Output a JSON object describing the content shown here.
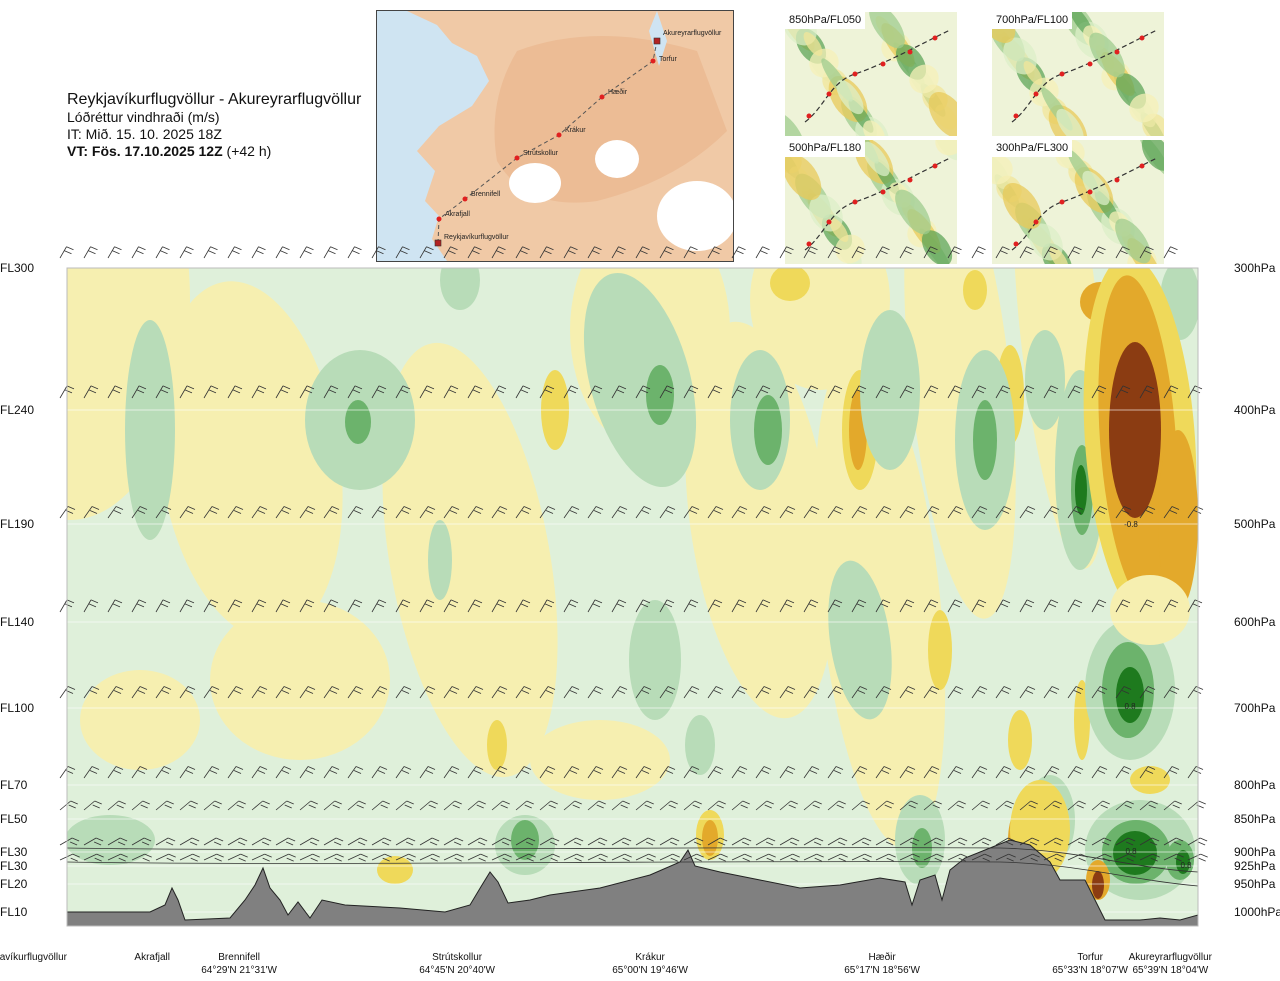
{
  "header": {
    "title": "Reykjavíkurflugvöllur - Akureyrarflugvöllur",
    "variable": "Lóðréttur vindhraði (m/s)",
    "it_label": "IT: Mið. 15. 10. 2025 18Z",
    "vt_label": "VT: Fös. 17.10.2025 12Z",
    "vt_offset": "(+42 h)"
  },
  "map_inset": {
    "waypoints": [
      "Reykjavíkurflugvöllur",
      "Akrafjall",
      "Brennifell",
      "Strútskollur",
      "Krákur",
      "Hæðir",
      "Torfur",
      "Akureyrarflugvöllur"
    ]
  },
  "panels": [
    {
      "label": "850hPa/FL050"
    },
    {
      "label": "700hPa/FL100"
    },
    {
      "label": "500hPa/FL180"
    },
    {
      "label": "300hPa/FL300"
    }
  ],
  "chart_data": {
    "type": "heatmap",
    "title": "Lóðréttur vindhraði (m/s)",
    "levels": [
      {
        "fl": "FL300",
        "pa": "300hPa"
      },
      {
        "fl": "FL240",
        "pa": "400hPa"
      },
      {
        "fl": "FL190",
        "pa": "500hPa"
      },
      {
        "fl": "FL140",
        "pa": "600hPa"
      },
      {
        "fl": "FL100",
        "pa": "700hPa"
      },
      {
        "fl": "FL70",
        "pa": "800hPa"
      },
      {
        "fl": "FL50",
        "pa": "850hPa"
      },
      {
        "fl": "FL30",
        "pa": "900hPa"
      },
      {
        "fl": "FL30",
        "pa": "925hPa"
      },
      {
        "fl": "FL20",
        "pa": "950hPa"
      },
      {
        "fl": "FL10",
        "pa": "1000hPa"
      }
    ],
    "places": [
      {
        "name": "Reykjavíkurflugvöllur",
        "coord": ""
      },
      {
        "name": "Akrafjall",
        "coord": ""
      },
      {
        "name": "Brennifell",
        "coord": "64°29'N 21°31'W"
      },
      {
        "name": "Strútskollur",
        "coord": "64°45'N 20°40'W"
      },
      {
        "name": "Krákur",
        "coord": "65°00'N 19°46'W"
      },
      {
        "name": "Hæðir",
        "coord": "65°17'N 18°56'W"
      },
      {
        "name": "Torfur",
        "coord": "65°33'N 18°07'W"
      },
      {
        "name": "Akureyrarflugvöllur",
        "coord": "65°39'N 18°04'W"
      }
    ],
    "annotations": [
      "-0.8",
      "0.8",
      "0.8",
      "0.8"
    ],
    "colors": {
      "strong_up": "#1e7a1e",
      "up": "#6cb36c",
      "weak_up": "#b8dcb8",
      "faint_up": "#dff0da",
      "neutral": "#fbfbe3",
      "faint_down": "#f6efb0",
      "weak_down": "#efd95a",
      "down": "#e3a92b",
      "strong_down": "#8b3c12",
      "terrain": "#808080"
    }
  }
}
